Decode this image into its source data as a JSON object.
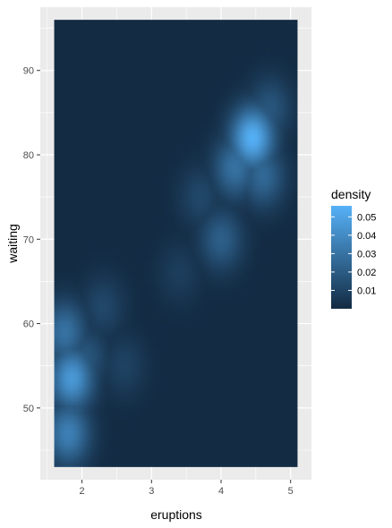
{
  "chart_data": {
    "type": "heatmap",
    "title": "",
    "xlabel": "eruptions",
    "ylabel": "waiting",
    "xlim": [
      1.4,
      5.3
    ],
    "ylim": [
      41.5,
      97.5
    ],
    "data_x_range": [
      1.6,
      5.1
    ],
    "data_y_range": [
      43,
      96
    ],
    "x_ticks": [
      2,
      3,
      4,
      5
    ],
    "x_tick_labels": [
      "2",
      "3",
      "4",
      "5"
    ],
    "y_ticks": [
      50,
      60,
      70,
      80,
      90
    ],
    "y_tick_labels": [
      "50",
      "60",
      "70",
      "80",
      "90"
    ],
    "grid": true,
    "fill_scale": {
      "name": "density",
      "low_color": "#132B43",
      "high_color": "#56B1F7",
      "max": 0.056,
      "breaks": [
        0.01,
        0.02,
        0.03,
        0.04,
        0.05
      ],
      "break_labels": [
        "0.01",
        "0.02",
        "0.03",
        "0.04",
        "0.05"
      ]
    },
    "legend_position": "right",
    "density_peaks": [
      {
        "eruptions": 4.45,
        "waiting": 82.0,
        "density": 0.056
      },
      {
        "eruptions": 4.2,
        "waiting": 78.5,
        "density": 0.03
      },
      {
        "eruptions": 4.6,
        "waiting": 77.5,
        "density": 0.026
      },
      {
        "eruptions": 4.7,
        "waiting": 85.5,
        "density": 0.018
      },
      {
        "eruptions": 4.0,
        "waiting": 70.0,
        "density": 0.022
      },
      {
        "eruptions": 3.7,
        "waiting": 75.0,
        "density": 0.012
      },
      {
        "eruptions": 1.85,
        "waiting": 53.5,
        "density": 0.046
      },
      {
        "eruptions": 1.8,
        "waiting": 47.0,
        "density": 0.036
      },
      {
        "eruptions": 1.75,
        "waiting": 59.0,
        "density": 0.03
      },
      {
        "eruptions": 2.05,
        "waiting": 56.0,
        "density": 0.018
      },
      {
        "eruptions": 2.3,
        "waiting": 62.0,
        "density": 0.012
      },
      {
        "eruptions": 2.6,
        "waiting": 55.0,
        "density": 0.01
      },
      {
        "eruptions": 3.4,
        "waiting": 66.0,
        "density": 0.008
      }
    ]
  }
}
